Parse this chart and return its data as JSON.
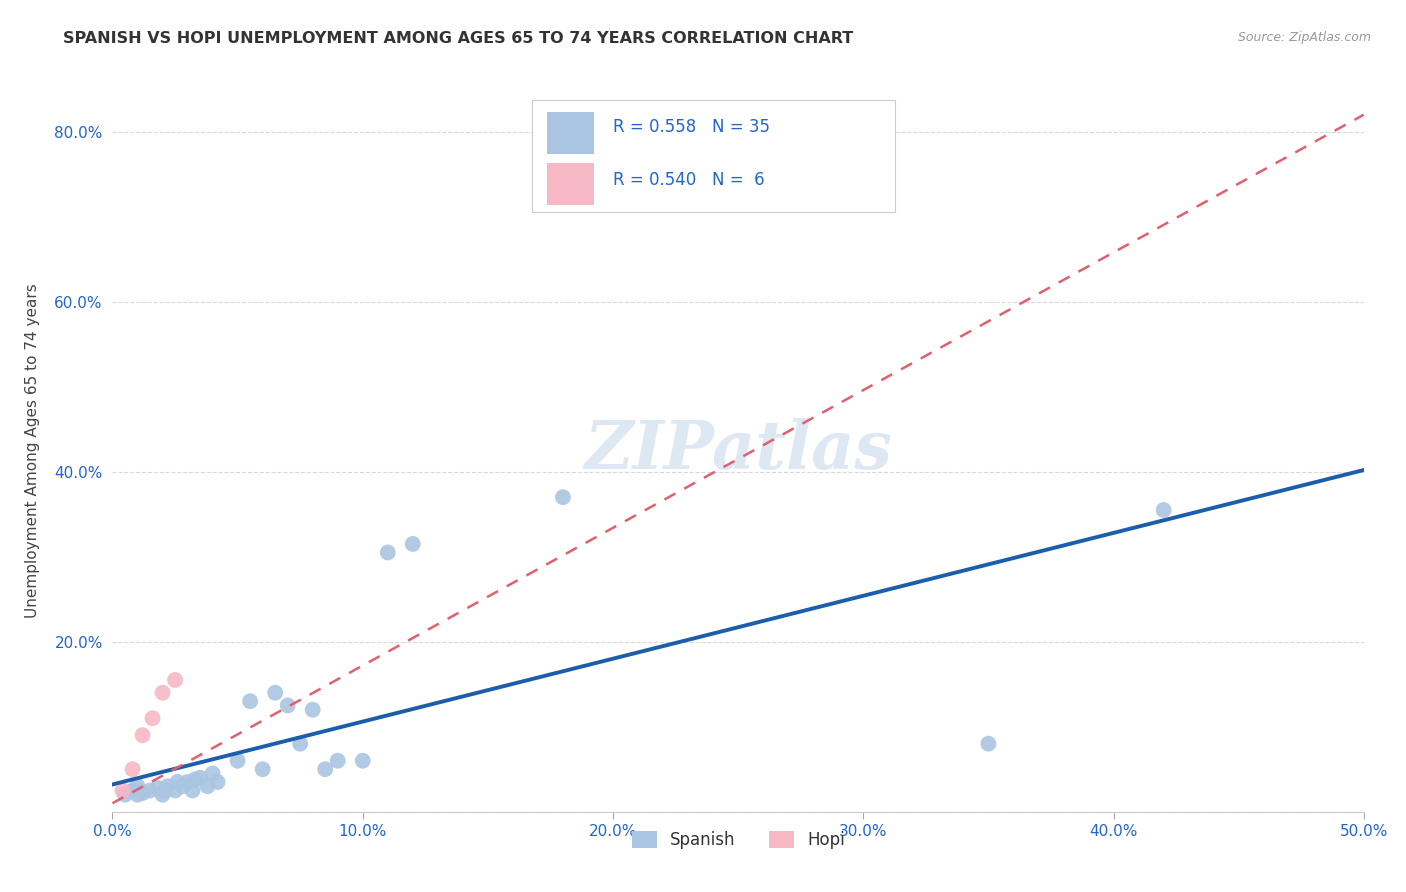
{
  "title": "SPANISH VS HOPI UNEMPLOYMENT AMONG AGES 65 TO 74 YEARS CORRELATION CHART",
  "source": "Source: ZipAtlas.com",
  "ylabel": "Unemployment Among Ages 65 to 74 years",
  "xlim": [
    0.0,
    0.5
  ],
  "ylim": [
    0.0,
    0.85
  ],
  "xticks": [
    0.0,
    0.1,
    0.2,
    0.3,
    0.4,
    0.5
  ],
  "yticks": [
    0.0,
    0.2,
    0.4,
    0.6,
    0.8
  ],
  "xtick_labels": [
    "0.0%",
    "10.0%",
    "20.0%",
    "30.0%",
    "40.0%",
    "50.0%"
  ],
  "ytick_labels": [
    "",
    "20.0%",
    "40.0%",
    "60.0%",
    "80.0%"
  ],
  "spanish_x": [
    0.005,
    0.008,
    0.01,
    0.01,
    0.012,
    0.015,
    0.018,
    0.02,
    0.021,
    0.022,
    0.025,
    0.026,
    0.028,
    0.03,
    0.032,
    0.033,
    0.035,
    0.038,
    0.04,
    0.042,
    0.05,
    0.055,
    0.06,
    0.065,
    0.07,
    0.075,
    0.08,
    0.085,
    0.09,
    0.1,
    0.11,
    0.12,
    0.18,
    0.35,
    0.42
  ],
  "spanish_y": [
    0.02,
    0.025,
    0.02,
    0.03,
    0.022,
    0.025,
    0.028,
    0.02,
    0.025,
    0.03,
    0.025,
    0.035,
    0.03,
    0.035,
    0.025,
    0.038,
    0.04,
    0.03,
    0.045,
    0.035,
    0.06,
    0.13,
    0.05,
    0.14,
    0.125,
    0.08,
    0.12,
    0.05,
    0.06,
    0.06,
    0.305,
    0.315,
    0.37,
    0.08,
    0.355
  ],
  "hopi_x": [
    0.004,
    0.008,
    0.012,
    0.016,
    0.02,
    0.025
  ],
  "hopi_y": [
    0.025,
    0.05,
    0.09,
    0.11,
    0.14,
    0.155
  ],
  "spanish_R": 0.558,
  "spanish_N": 35,
  "hopi_R": 0.54,
  "hopi_N": 6,
  "spanish_color": "#aac5e2",
  "hopi_color": "#f5b8c4",
  "spanish_line_color": "#1b5eab",
  "hopi_line_color": "#e06070",
  "legend_color": "#2266cc",
  "marker_size": 130,
  "background_color": "#ffffff",
  "grid_color": "#d0d0d0",
  "watermark_color": "#dde8f2"
}
